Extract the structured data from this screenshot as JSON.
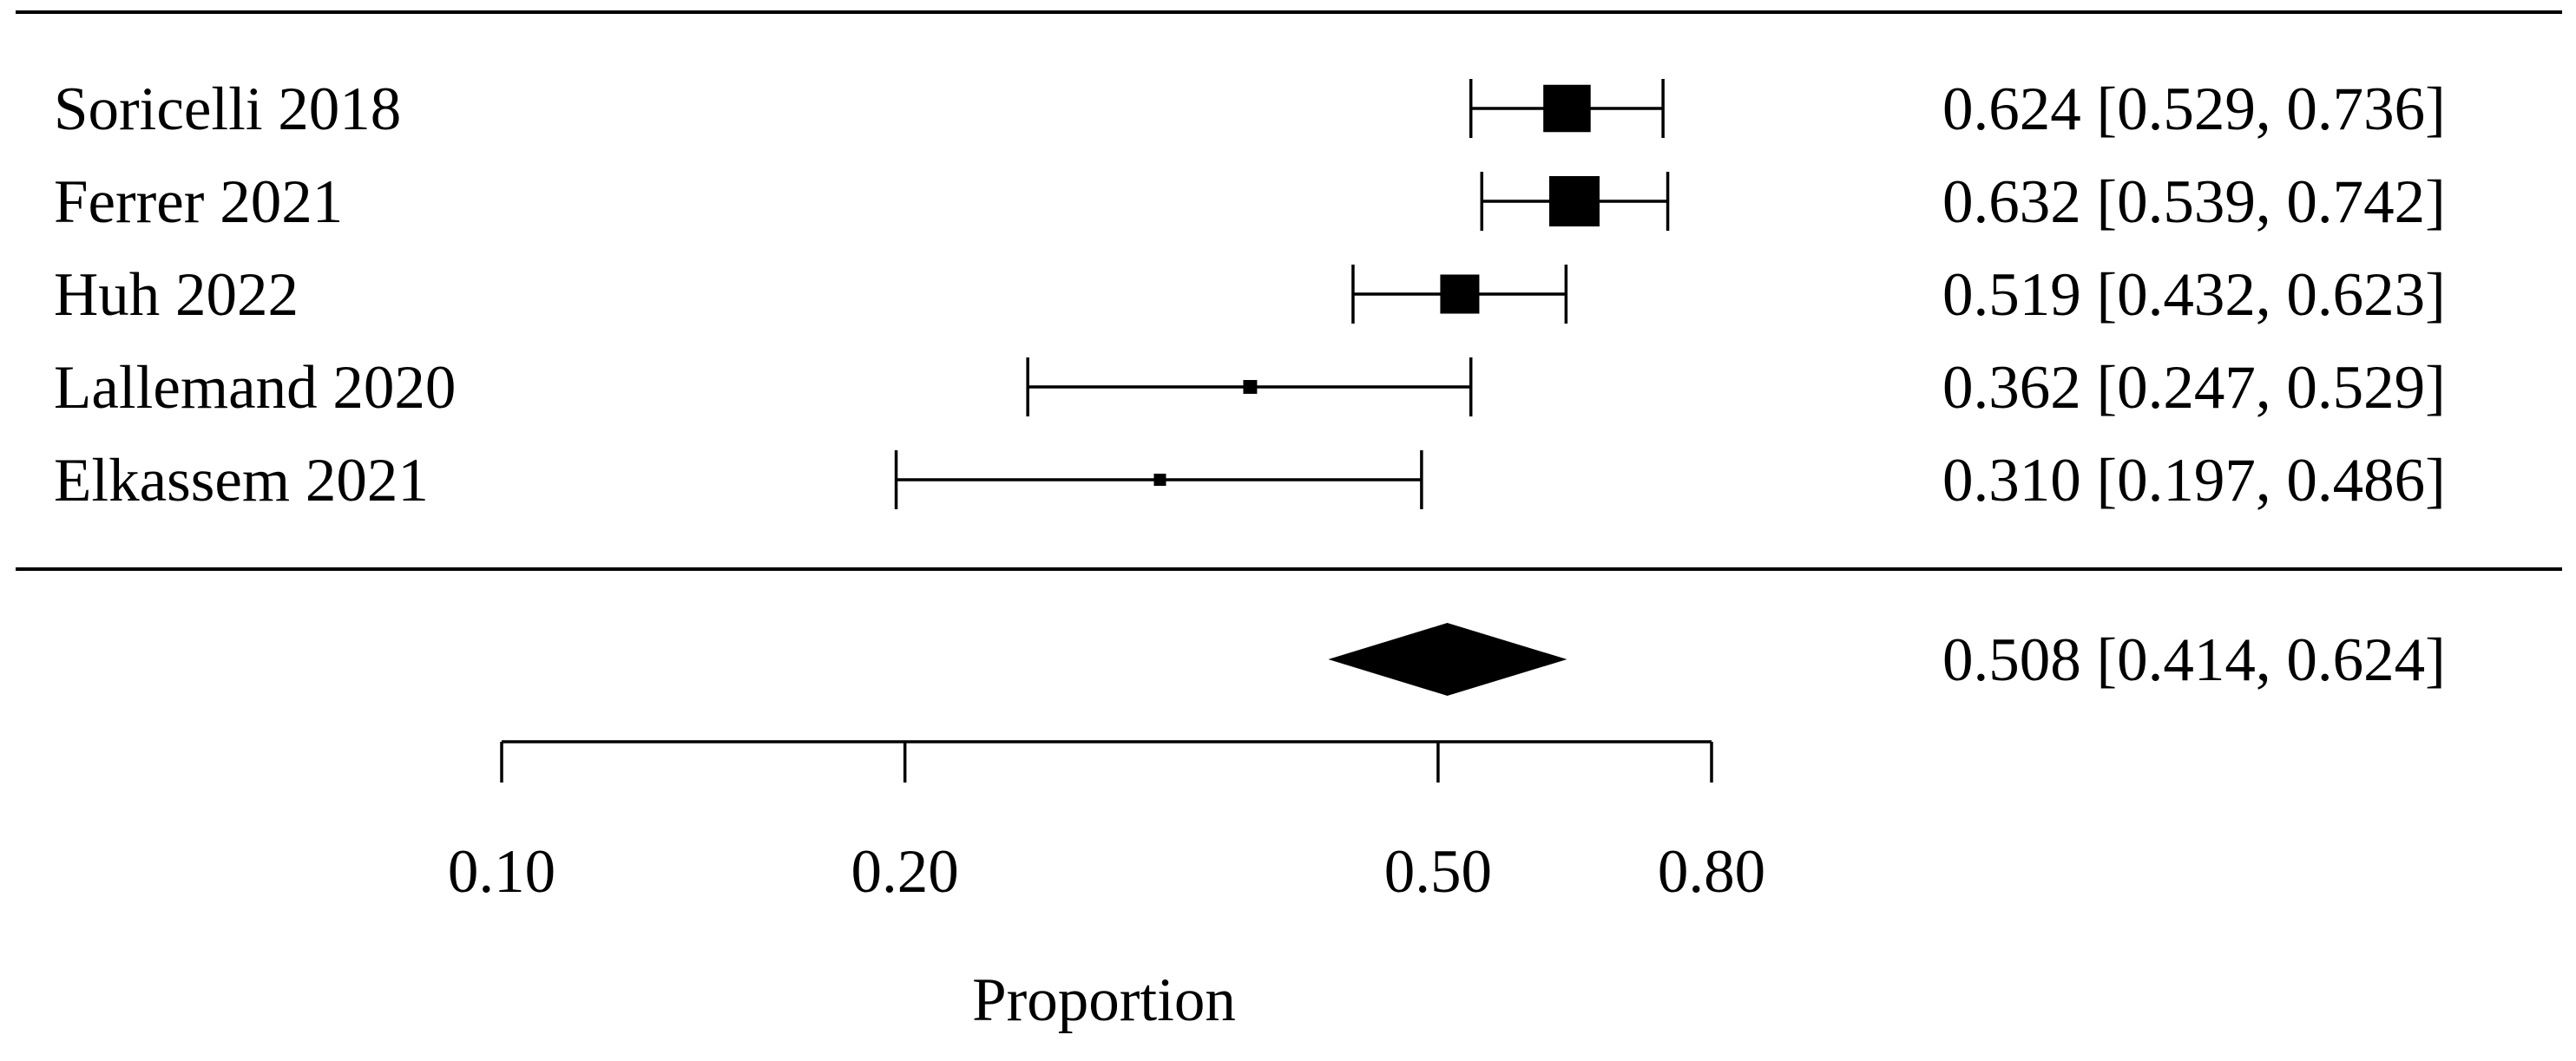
{
  "chart_data": {
    "type": "forest",
    "xlabel": "Proportion",
    "x_scale": "log",
    "xlim": [
      0.1,
      0.8
    ],
    "ticks": [
      {
        "value": 0.1,
        "label": "0.10"
      },
      {
        "value": 0.2,
        "label": "0.20"
      },
      {
        "value": 0.5,
        "label": "0.50"
      },
      {
        "value": 0.8,
        "label": "0.80"
      }
    ],
    "studies": [
      {
        "name": "Soricelli 2018",
        "estimate": 0.624,
        "lower": 0.529,
        "upper": 0.736,
        "label": "0.624 [0.529, 0.736]"
      },
      {
        "name": "Ferrer 2021",
        "estimate": 0.632,
        "lower": 0.539,
        "upper": 0.742,
        "label": "0.632 [0.539, 0.742]"
      },
      {
        "name": "Huh 2022",
        "estimate": 0.519,
        "lower": 0.432,
        "upper": 0.623,
        "label": "0.519 [0.432, 0.623]"
      },
      {
        "name": "Lallemand 2020",
        "estimate": 0.362,
        "lower": 0.247,
        "upper": 0.529,
        "label": "0.362 [0.247, 0.529]"
      },
      {
        "name": "Elkassem 2021",
        "estimate": 0.31,
        "lower": 0.197,
        "upper": 0.486,
        "label": "0.310 [0.197, 0.486]"
      }
    ],
    "summary": {
      "estimate": 0.508,
      "lower": 0.414,
      "upper": 0.624,
      "label": "0.508 [0.414, 0.624]"
    }
  }
}
